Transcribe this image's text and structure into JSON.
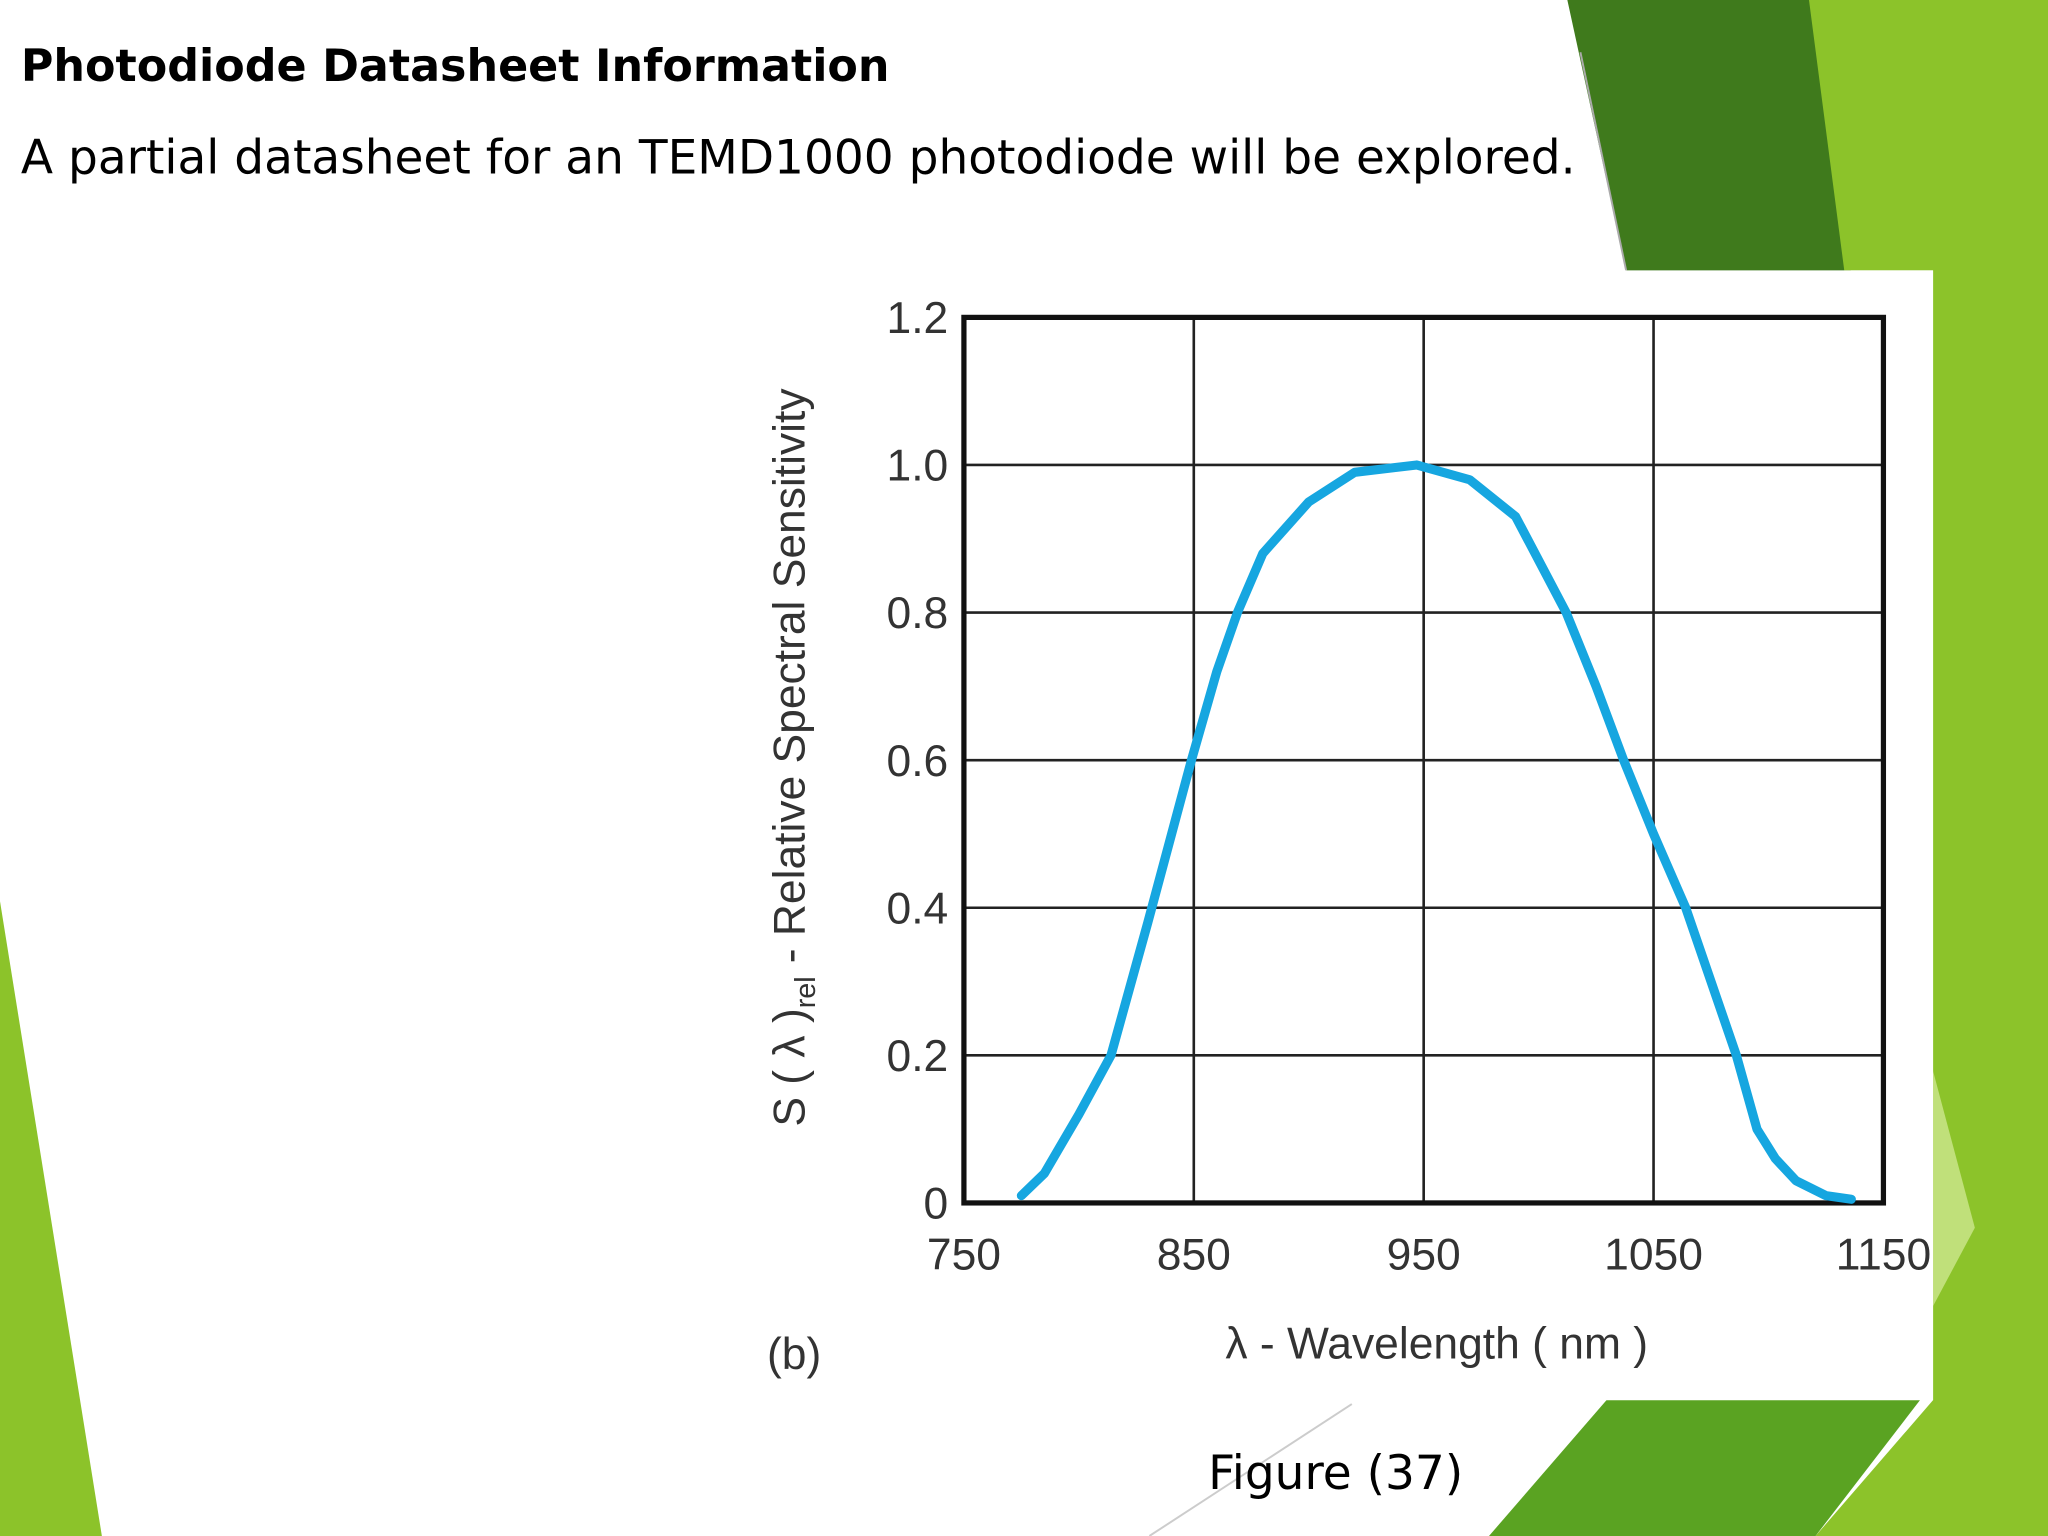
{
  "header": {
    "title": "Photodiode Datasheet Information",
    "subtitle": "A partial datasheet for an TEMD1000 photodiode will be explored."
  },
  "chart_data": {
    "type": "line",
    "ylabel": {
      "main": "S ( λ )",
      "sub": "rel",
      "rest": "- Relative Spectral Sensitivity"
    },
    "xlabel": "λ - Wavelength ( nm )",
    "panel_label": "(b)",
    "x": [
      775,
      785,
      800,
      814,
      830,
      849,
      860,
      869,
      880,
      900,
      920,
      947,
      970,
      990,
      1012,
      1025,
      1037,
      1050,
      1064,
      1086,
      1095,
      1103,
      1112,
      1125,
      1136
    ],
    "values": [
      0.01,
      0.04,
      0.12,
      0.2,
      0.38,
      0.6,
      0.72,
      0.8,
      0.88,
      0.95,
      0.99,
      1.0,
      0.98,
      0.93,
      0.8,
      0.7,
      0.6,
      0.5,
      0.4,
      0.2,
      0.1,
      0.06,
      0.03,
      0.01,
      0.005
    ],
    "color": "#16a6e0",
    "xlim": [
      750,
      1150
    ],
    "xticks": [
      750,
      850,
      950,
      1050,
      1150
    ],
    "ylim": [
      0,
      1.2
    ],
    "yticks": [
      0,
      0.2,
      0.4,
      0.6,
      0.8,
      {
        "value": 1,
        "label": "1.0"
      },
      1.2
    ],
    "grid": true
  },
  "caption": "Figure (37)"
}
